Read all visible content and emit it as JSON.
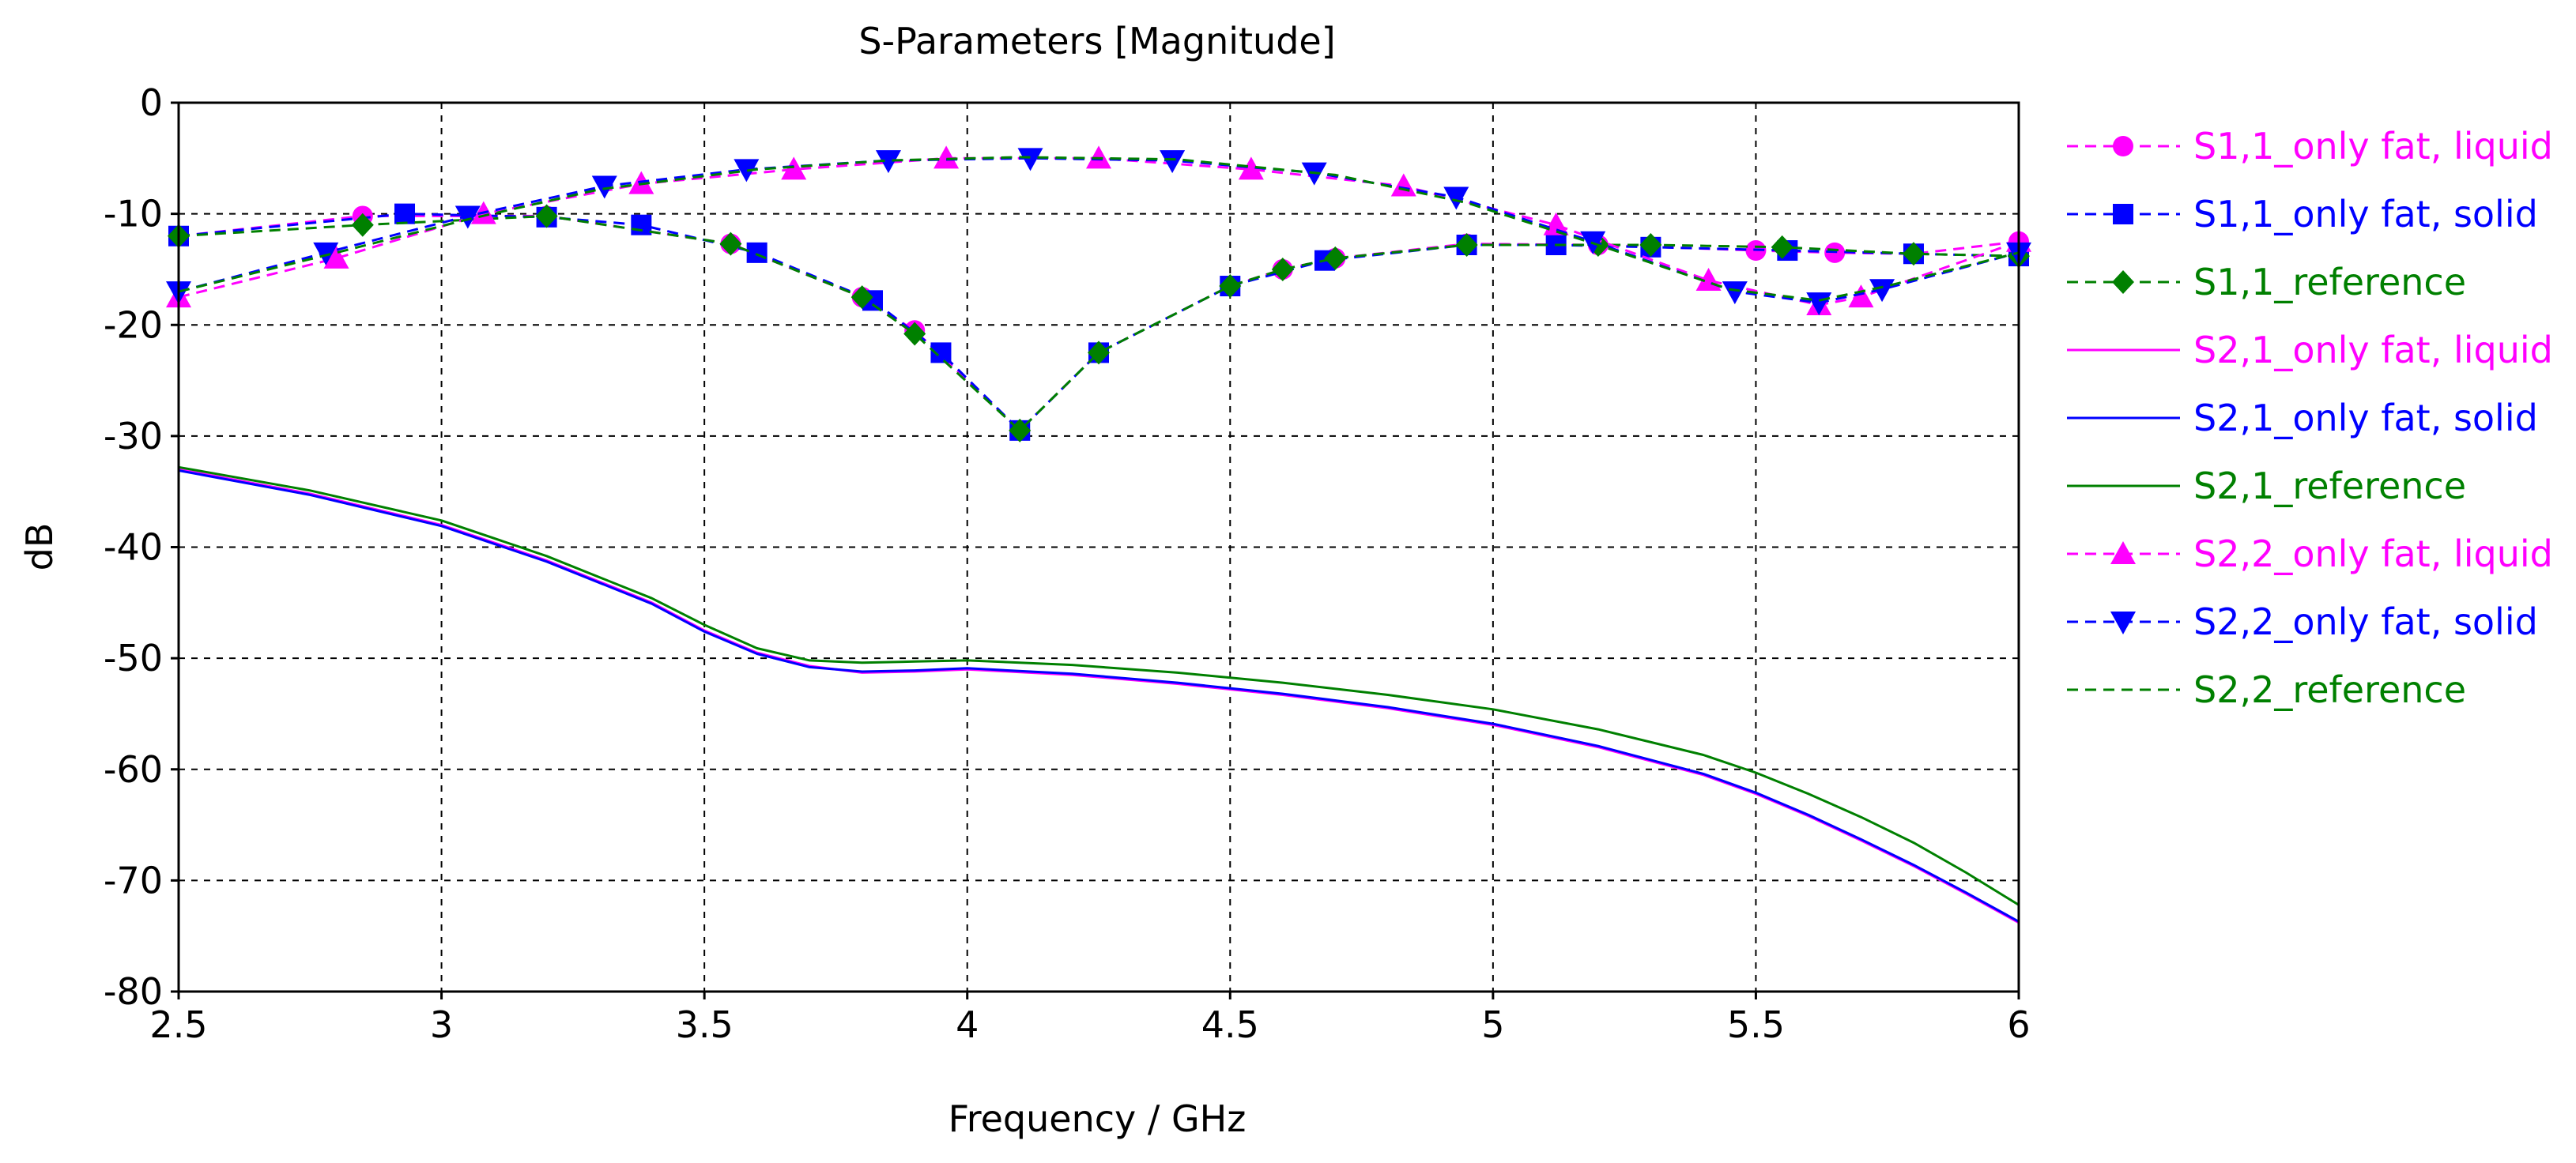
{
  "chart_data": {
    "type": "line",
    "title": "S-Parameters [Magnitude]",
    "xlabel": "Frequency / GHz",
    "ylabel": "dB",
    "xlim": [
      2.5,
      6
    ],
    "ylim": [
      -80,
      0
    ],
    "xticks": [
      2.5,
      3,
      3.5,
      4,
      4.5,
      5,
      5.5,
      6
    ],
    "yticks": [
      0,
      -10,
      -20,
      -30,
      -40,
      -50,
      -60,
      -70,
      -80
    ],
    "grid": true,
    "legend_position": "right",
    "series": [
      {
        "name": "S1,1_only fat, liquid",
        "color": "#ff00ff",
        "dash": "dashed",
        "marker": "circle",
        "x": [
          2.5,
          2.85,
          3.2,
          3.55,
          3.8,
          3.9,
          4.1,
          4.25,
          4.5,
          4.6,
          4.7,
          4.95,
          5.2,
          5.5,
          5.65,
          5.8,
          6.0
        ],
        "y": [
          -12,
          -10.2,
          -10.2,
          -12.7,
          -17.5,
          -20.5,
          -29.5,
          -22.5,
          -16.5,
          -15,
          -14,
          -12.7,
          -12.8,
          -13.3,
          -13.5,
          -13.6,
          -12.5
        ]
      },
      {
        "name": "S1,1_only fat, solid",
        "color": "#0000ff",
        "dash": "dashed",
        "marker": "square",
        "x": [
          2.5,
          2.93,
          3.2,
          3.38,
          3.6,
          3.82,
          3.95,
          4.1,
          4.25,
          4.5,
          4.68,
          4.95,
          5.12,
          5.3,
          5.56,
          5.8,
          6.0
        ],
        "y": [
          -12,
          -10,
          -10.3,
          -11,
          -13.5,
          -17.8,
          -22.5,
          -29.5,
          -22.5,
          -16.5,
          -14.2,
          -12.8,
          -12.8,
          -13,
          -13.3,
          -13.6,
          -13.8
        ]
      },
      {
        "name": "S1,1_reference",
        "color": "#008000",
        "dash": "dashed",
        "marker": "diamond",
        "x": [
          2.5,
          2.85,
          3.2,
          3.55,
          3.8,
          3.9,
          4.1,
          4.25,
          4.5,
          4.6,
          4.7,
          4.95,
          5.2,
          5.3,
          5.55,
          5.8,
          6.0
        ],
        "y": [
          -12,
          -11,
          -10.2,
          -12.7,
          -17.5,
          -20.8,
          -29.5,
          -22.5,
          -16.5,
          -15,
          -14,
          -12.8,
          -12.8,
          -12.8,
          -13,
          -13.6,
          -13.8
        ]
      },
      {
        "name": "S2,1_only fat, liquid",
        "color": "#ff00ff",
        "dash": "solid",
        "marker": "none",
        "x": [
          2.5,
          2.75,
          3.0,
          3.2,
          3.4,
          3.5,
          3.6,
          3.7,
          3.8,
          3.9,
          4.0,
          4.2,
          4.4,
          4.6,
          4.8,
          5.0,
          5.2,
          5.4,
          5.5,
          5.6,
          5.7,
          5.8,
          5.9,
          6.0
        ],
        "y": [
          -33,
          -35.2,
          -38,
          -41.2,
          -45,
          -47.5,
          -49.5,
          -50.7,
          -51.3,
          -51.2,
          -51,
          -51.5,
          -52.3,
          -53.3,
          -54.5,
          -56,
          -58,
          -60.5,
          -62.2,
          -64.2,
          -66.4,
          -68.7,
          -71.2,
          -73.8
        ]
      },
      {
        "name": "S2,1_only fat, solid",
        "color": "#0000ff",
        "dash": "solid",
        "marker": "none",
        "x": [
          2.5,
          2.75,
          3.0,
          3.2,
          3.4,
          3.5,
          3.6,
          3.7,
          3.8,
          3.9,
          4.0,
          4.2,
          4.4,
          4.6,
          4.8,
          5.0,
          5.2,
          5.4,
          5.5,
          5.6,
          5.7,
          5.8,
          5.9,
          6.0
        ],
        "y": [
          -33.1,
          -35.3,
          -38.1,
          -41.3,
          -45.1,
          -47.6,
          -49.6,
          -50.8,
          -51.2,
          -51.1,
          -50.9,
          -51.4,
          -52.2,
          -53.2,
          -54.4,
          -55.9,
          -57.9,
          -60.4,
          -62.1,
          -64.1,
          -66.3,
          -68.6,
          -71.1,
          -73.7
        ]
      },
      {
        "name": "S2,1_reference",
        "color": "#008000",
        "dash": "solid",
        "marker": "none",
        "x": [
          2.5,
          2.75,
          3.0,
          3.2,
          3.4,
          3.5,
          3.6,
          3.7,
          3.8,
          3.9,
          4.0,
          4.2,
          4.4,
          4.6,
          4.8,
          5.0,
          5.2,
          5.4,
          5.5,
          5.6,
          5.7,
          5.8,
          5.9,
          6.0
        ],
        "y": [
          -32.8,
          -34.9,
          -37.6,
          -40.8,
          -44.6,
          -47,
          -49.1,
          -50.2,
          -50.4,
          -50.3,
          -50.2,
          -50.6,
          -51.3,
          -52.2,
          -53.3,
          -54.6,
          -56.4,
          -58.7,
          -60.3,
          -62.2,
          -64.3,
          -66.6,
          -69.3,
          -72.2
        ]
      },
      {
        "name": "S2,2_only fat, liquid",
        "color": "#ff00ff",
        "dash": "dashed",
        "marker": "triangle-up",
        "x": [
          2.5,
          2.8,
          3.08,
          3.38,
          3.67,
          3.96,
          4.25,
          4.54,
          4.83,
          5.12,
          5.41,
          5.62,
          5.7,
          6.0
        ],
        "y": [
          -17.5,
          -14,
          -10,
          -7.3,
          -6,
          -5,
          -5,
          -6,
          -7.5,
          -11,
          -16,
          -18.2,
          -17.5,
          -12.5
        ]
      },
      {
        "name": "S2,2_only fat, solid",
        "color": "#0000ff",
        "dash": "dashed",
        "marker": "triangle-down",
        "x": [
          2.5,
          2.78,
          3.05,
          3.31,
          3.58,
          3.85,
          4.12,
          4.39,
          4.66,
          4.93,
          5.19,
          5.46,
          5.62,
          5.74,
          6.0
        ],
        "y": [
          -17,
          -13.5,
          -10.2,
          -7.5,
          -6,
          -5.2,
          -5,
          -5.2,
          -6.3,
          -8.5,
          -12.5,
          -17,
          -18,
          -16.8,
          -13.5
        ]
      },
      {
        "name": "S2,2_reference",
        "color": "#008000",
        "dash": "dashed",
        "marker": "none",
        "x": [
          2.5,
          2.8,
          3.05,
          3.3,
          3.6,
          3.85,
          4.1,
          4.4,
          4.7,
          4.95,
          5.2,
          5.45,
          5.62,
          5.75,
          6.0
        ],
        "y": [
          -17,
          -13.5,
          -10.5,
          -7.8,
          -6,
          -5.2,
          -4.9,
          -5.1,
          -6.5,
          -9,
          -12.8,
          -16.8,
          -17.8,
          -16.5,
          -13.5
        ]
      }
    ]
  }
}
